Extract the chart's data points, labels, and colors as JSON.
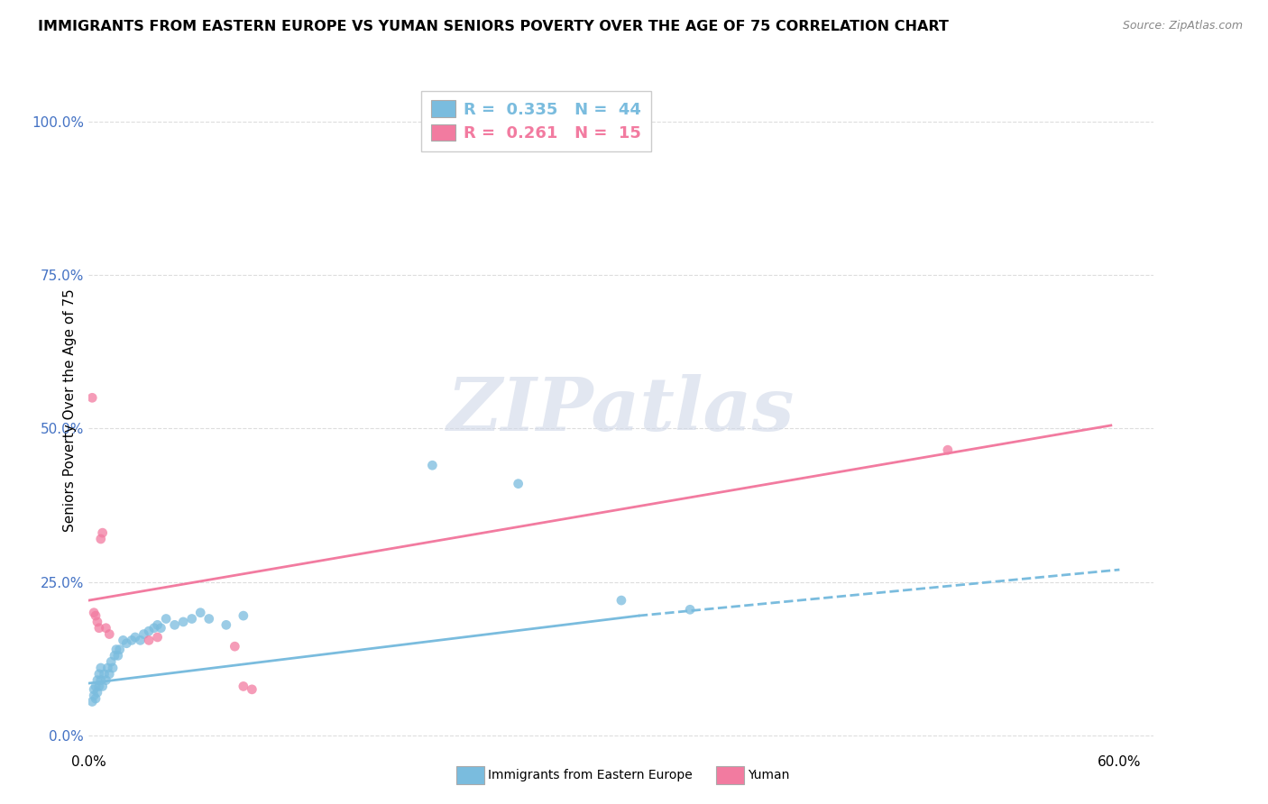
{
  "title": "IMMIGRANTS FROM EASTERN EUROPE VS YUMAN SENIORS POVERTY OVER THE AGE OF 75 CORRELATION CHART",
  "source": "Source: ZipAtlas.com",
  "ylabel_label": "Seniors Poverty Over the Age of 75",
  "y_tick_labels": [
    "0.0%",
    "25.0%",
    "50.0%",
    "75.0%",
    "100.0%"
  ],
  "y_tick_values": [
    0.0,
    0.25,
    0.5,
    0.75,
    1.0
  ],
  "x_tick_labels": [
    "0.0%",
    "60.0%"
  ],
  "x_tick_values": [
    0.0,
    0.6
  ],
  "x_lim": [
    0.0,
    0.62
  ],
  "y_lim": [
    -0.02,
    1.08
  ],
  "legend_R_N": [
    {
      "R": "0.335",
      "N": "44"
    },
    {
      "R": "0.261",
      "N": "15"
    }
  ],
  "legend_labels": [
    "Immigrants from Eastern Europe",
    "Yuman"
  ],
  "blue_color": "#7abcde",
  "pink_color": "#f27ba0",
  "blue_scatter": [
    [
      0.002,
      0.055
    ],
    [
      0.003,
      0.065
    ],
    [
      0.003,
      0.075
    ],
    [
      0.004,
      0.06
    ],
    [
      0.004,
      0.08
    ],
    [
      0.005,
      0.07
    ],
    [
      0.005,
      0.09
    ],
    [
      0.006,
      0.08
    ],
    [
      0.006,
      0.1
    ],
    [
      0.007,
      0.09
    ],
    [
      0.007,
      0.11
    ],
    [
      0.008,
      0.08
    ],
    [
      0.009,
      0.1
    ],
    [
      0.01,
      0.09
    ],
    [
      0.011,
      0.11
    ],
    [
      0.012,
      0.1
    ],
    [
      0.013,
      0.12
    ],
    [
      0.014,
      0.11
    ],
    [
      0.015,
      0.13
    ],
    [
      0.016,
      0.14
    ],
    [
      0.017,
      0.13
    ],
    [
      0.018,
      0.14
    ],
    [
      0.02,
      0.155
    ],
    [
      0.022,
      0.15
    ],
    [
      0.025,
      0.155
    ],
    [
      0.027,
      0.16
    ],
    [
      0.03,
      0.155
    ],
    [
      0.032,
      0.165
    ],
    [
      0.035,
      0.17
    ],
    [
      0.038,
      0.175
    ],
    [
      0.04,
      0.18
    ],
    [
      0.042,
      0.175
    ],
    [
      0.045,
      0.19
    ],
    [
      0.05,
      0.18
    ],
    [
      0.055,
      0.185
    ],
    [
      0.06,
      0.19
    ],
    [
      0.065,
      0.2
    ],
    [
      0.07,
      0.19
    ],
    [
      0.08,
      0.18
    ],
    [
      0.09,
      0.195
    ],
    [
      0.2,
      0.44
    ],
    [
      0.25,
      0.41
    ],
    [
      0.31,
      0.22
    ],
    [
      0.35,
      0.205
    ]
  ],
  "pink_scatter": [
    [
      0.002,
      0.55
    ],
    [
      0.003,
      0.2
    ],
    [
      0.004,
      0.195
    ],
    [
      0.005,
      0.185
    ],
    [
      0.006,
      0.175
    ],
    [
      0.007,
      0.32
    ],
    [
      0.008,
      0.33
    ],
    [
      0.01,
      0.175
    ],
    [
      0.012,
      0.165
    ],
    [
      0.035,
      0.155
    ],
    [
      0.04,
      0.16
    ],
    [
      0.085,
      0.145
    ],
    [
      0.09,
      0.08
    ],
    [
      0.095,
      0.075
    ],
    [
      0.5,
      0.465
    ]
  ],
  "blue_solid_line": {
    "x0": 0.0,
    "x1": 0.32,
    "y0": 0.085,
    "y1": 0.195
  },
  "blue_dashed_line": {
    "x0": 0.32,
    "x1": 0.6,
    "y0": 0.195,
    "y1": 0.27
  },
  "pink_solid_line": {
    "x0": 0.0,
    "x1": 0.595,
    "y0": 0.22,
    "y1": 0.505
  },
  "watermark_text": "ZIPatlas",
  "background_color": "#ffffff",
  "grid_color": "#dddddd",
  "grid_style": "--"
}
